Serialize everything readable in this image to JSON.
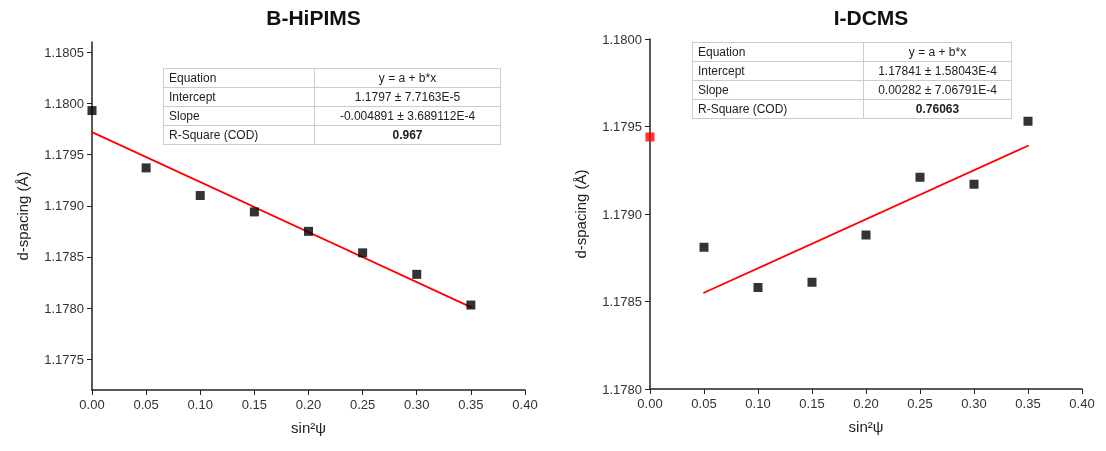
{
  "chart_data": [
    {
      "type": "scatter",
      "title": "B-HiPIMS",
      "xlabel": "sin²ψ",
      "ylabel": "d-spacing (Å)",
      "series": [
        {
          "color": "#000000",
          "marker": "square",
          "x": [
            0,
            0.05,
            0.1,
            0.15,
            0.2,
            0.25,
            0.3,
            0.35
          ],
          "values": [
            1.17993,
            1.17937,
            1.1791,
            1.17894,
            1.17875,
            1.17854,
            1.17833,
            1.17803
          ]
        },
        {
          "type": "line",
          "color": "#ff0000",
          "marker": "none",
          "line_style": "solid",
          "x": [
            0,
            0.35
          ],
          "values": [
            1.17972,
            1.17801
          ]
        }
      ],
      "xlim": [
        0,
        0.4
      ],
      "xticks": [
        {
          "value": 0,
          "label": "0.00"
        },
        {
          "value": 0.05,
          "label": "0.05"
        },
        {
          "value": 0.1,
          "label": "0.10"
        },
        {
          "value": 0.15,
          "label": "0.15"
        },
        {
          "value": 0.2,
          "label": "0.20"
        },
        {
          "value": 0.25,
          "label": "0.25"
        },
        {
          "value": 0.3,
          "label": "0.30"
        },
        {
          "value": 0.35,
          "label": "0.35"
        },
        {
          "value": 0.4,
          "label": "0.40"
        }
      ],
      "ylim": [
        1.1772,
        1.1806
      ],
      "yticks": [
        1.1775,
        {
          "value": 1.178,
          "label": "1.1780"
        },
        1.1785,
        {
          "value": 1.179,
          "label": "1.1790"
        },
        1.1795,
        {
          "value": 1.18,
          "label": "1.1800"
        },
        1.1805
      ],
      "grid": false,
      "annotations": [
        "Equation",
        "y = a + b*x",
        "Intercept",
        "1.1797 ± 7.7163E-5",
        "Slope",
        "-0.004891 ± 3.689112E-4",
        "R-Square (COD)",
        "0.967"
      ]
    },
    {
      "type": "scatter",
      "title": "I-DCMS",
      "xlabel": "sin²ψ",
      "ylabel": "d-spacing (Å)",
      "series": [
        {
          "color": "#000000",
          "marker": "square",
          "x": [
            0.05,
            0.1,
            0.15,
            0.2,
            0.25,
            0.3,
            0.35
          ],
          "values": [
            1.17881,
            1.17858,
            1.17861,
            1.17888,
            1.17921,
            1.17917,
            1.17953
          ]
        },
        {
          "type": "scatter",
          "color": "#ff0000",
          "marker": "square",
          "x": [
            0
          ],
          "values": [
            1.17944
          ]
        },
        {
          "type": "line",
          "color": "#ff0000",
          "marker": "none",
          "line_style": "solid",
          "x": [
            0.05,
            0.35
          ],
          "values": [
            1.17855,
            1.17939
          ]
        }
      ],
      "xlim": [
        0,
        0.4
      ],
      "xticks": [
        {
          "value": 0,
          "label": "0.00"
        },
        {
          "value": 0.05,
          "label": "0.05"
        },
        {
          "value": 0.1,
          "label": "0.10"
        },
        {
          "value": 0.15,
          "label": "0.15"
        },
        {
          "value": 0.2,
          "label": "0.20"
        },
        {
          "value": 0.25,
          "label": "0.25"
        },
        {
          "value": 0.3,
          "label": "0.30"
        },
        {
          "value": 0.35,
          "label": "0.35"
        },
        {
          "value": 0.4,
          "label": "0.40"
        }
      ],
      "ylim": [
        1.178,
        1.18
      ],
      "yticks": [
        {
          "value": 1.178,
          "label": "1.1780"
        },
        1.1785,
        {
          "value": 1.179,
          "label": "1.1790"
        },
        1.1795,
        {
          "value": 1.18,
          "label": "1.1800"
        }
      ],
      "grid": false,
      "annotations": [
        "Equation",
        "y = a + b*x",
        "Intercept",
        "1.17841 ± 1.58043E-4",
        "Slope",
        "0.00282 ± 7.06791E-4",
        "R-Square (COD)",
        "0.76063"
      ]
    }
  ]
}
